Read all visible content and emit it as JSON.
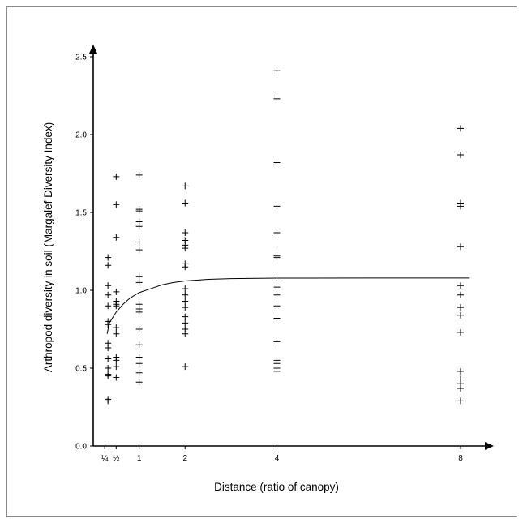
{
  "chart_data": {
    "type": "scatter",
    "title": "",
    "xlabel": "Distance (ratio of canopy)",
    "ylabel": "Arthropod diversity in soil (Margalef Diversity Index)",
    "xlim": [
      0,
      8.3
    ],
    "ylim": [
      0,
      2.5
    ],
    "x_ticks": [
      {
        "value": 0.25,
        "label": "¼"
      },
      {
        "value": 0.5,
        "label": "½"
      },
      {
        "value": 1,
        "label": "1"
      },
      {
        "value": 2,
        "label": "2"
      },
      {
        "value": 4,
        "label": "4"
      },
      {
        "value": 8,
        "label": "8"
      }
    ],
    "y_ticks": [
      {
        "value": 0.0,
        "label": "0.0"
      },
      {
        "value": 0.5,
        "label": "0.5"
      },
      {
        "value": 1.0,
        "label": "1.0"
      },
      {
        "value": 1.5,
        "label": "1.5"
      },
      {
        "value": 2.0,
        "label": "2.0"
      },
      {
        "value": 2.5,
        "label": "2.5"
      }
    ],
    "grid": false,
    "legend": "none",
    "marker": "plus",
    "series": [
      {
        "points": [
          [
            0.25,
            1.21
          ],
          [
            0.25,
            1.16
          ],
          [
            0.25,
            1.03
          ],
          [
            0.25,
            0.97
          ],
          [
            0.25,
            0.9
          ],
          [
            0.25,
            0.8
          ],
          [
            0.25,
            0.78
          ],
          [
            0.25,
            0.66
          ],
          [
            0.25,
            0.63
          ],
          [
            0.25,
            0.56
          ],
          [
            0.25,
            0.5
          ],
          [
            0.25,
            0.46
          ],
          [
            0.25,
            0.45
          ],
          [
            0.25,
            0.3
          ],
          [
            0.25,
            0.29
          ],
          [
            0.5,
            1.73
          ],
          [
            0.5,
            1.55
          ],
          [
            0.5,
            1.34
          ],
          [
            0.5,
            0.99
          ],
          [
            0.5,
            0.93
          ],
          [
            0.5,
            0.91
          ],
          [
            0.5,
            0.9
          ],
          [
            0.5,
            0.76
          ],
          [
            0.5,
            0.72
          ],
          [
            0.5,
            0.57
          ],
          [
            0.5,
            0.55
          ],
          [
            0.5,
            0.51
          ],
          [
            0.5,
            0.44
          ],
          [
            1,
            1.74
          ],
          [
            1,
            1.52
          ],
          [
            1,
            1.51
          ],
          [
            1,
            1.44
          ],
          [
            1,
            1.41
          ],
          [
            1,
            1.31
          ],
          [
            1,
            1.26
          ],
          [
            1,
            1.09
          ],
          [
            1,
            1.05
          ],
          [
            1,
            0.91
          ],
          [
            1,
            0.88
          ],
          [
            1,
            0.86
          ],
          [
            1,
            0.75
          ],
          [
            1,
            0.65
          ],
          [
            1,
            0.57
          ],
          [
            1,
            0.53
          ],
          [
            1,
            0.47
          ],
          [
            1,
            0.41
          ],
          [
            2,
            1.67
          ],
          [
            2,
            1.56
          ],
          [
            2,
            1.37
          ],
          [
            2,
            1.32
          ],
          [
            2,
            1.29
          ],
          [
            2,
            1.27
          ],
          [
            2,
            1.17
          ],
          [
            2,
            1.15
          ],
          [
            2,
            1.01
          ],
          [
            2,
            0.97
          ],
          [
            2,
            0.93
          ],
          [
            2,
            0.89
          ],
          [
            2,
            0.83
          ],
          [
            2,
            0.79
          ],
          [
            2,
            0.75
          ],
          [
            2,
            0.72
          ],
          [
            2,
            0.51
          ],
          [
            4,
            2.41
          ],
          [
            4,
            2.23
          ],
          [
            4,
            1.82
          ],
          [
            4,
            1.54
          ],
          [
            4,
            1.37
          ],
          [
            4,
            1.22
          ],
          [
            4,
            1.21
          ],
          [
            4,
            1.06
          ],
          [
            4,
            1.02
          ],
          [
            4,
            0.97
          ],
          [
            4,
            0.9
          ],
          [
            4,
            0.82
          ],
          [
            4,
            0.67
          ],
          [
            4,
            0.55
          ],
          [
            4,
            0.53
          ],
          [
            4,
            0.5
          ],
          [
            4,
            0.48
          ],
          [
            8,
            2.04
          ],
          [
            8,
            1.87
          ],
          [
            8,
            1.56
          ],
          [
            8,
            1.54
          ],
          [
            8,
            1.28
          ],
          [
            8,
            1.03
          ],
          [
            8,
            0.97
          ],
          [
            8,
            0.89
          ],
          [
            8,
            0.84
          ],
          [
            8,
            0.73
          ],
          [
            8,
            0.48
          ],
          [
            8,
            0.43
          ],
          [
            8,
            0.4
          ],
          [
            8,
            0.37
          ],
          [
            8,
            0.29
          ]
        ]
      }
    ],
    "fit_line": [
      [
        0.25,
        0.72
      ],
      [
        0.35,
        0.79
      ],
      [
        0.5,
        0.86
      ],
      [
        0.65,
        0.91
      ],
      [
        0.8,
        0.95
      ],
      [
        1,
        0.985
      ],
      [
        1.25,
        1.01
      ],
      [
        1.5,
        1.035
      ],
      [
        1.75,
        1.05
      ],
      [
        2,
        1.06
      ],
      [
        2.5,
        1.07
      ],
      [
        3,
        1.075
      ],
      [
        4,
        1.078
      ],
      [
        6,
        1.079
      ],
      [
        8.2,
        1.079
      ]
    ]
  }
}
